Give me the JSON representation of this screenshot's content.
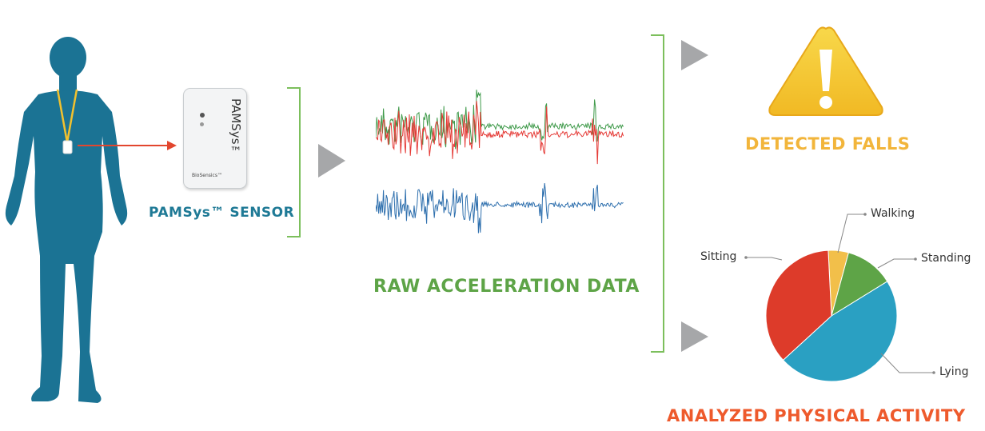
{
  "labels": {
    "sensor": "PAMSys™ SENSOR",
    "raw_data": "RAW ACCELERATION DATA",
    "falls": "DETECTED FALLS",
    "activity": "ANALYZED PHYSICAL ACTIVITY"
  },
  "sensor_device": {
    "brand": "PAMSys™",
    "maker": "BioSensics™"
  },
  "chart_data": {
    "type": "pie",
    "title": "",
    "series": [
      {
        "name": "Walking",
        "value": 5,
        "color": "#f2bf4a"
      },
      {
        "name": "Standing",
        "value": 12,
        "color": "#5ea447"
      },
      {
        "name": "Lying",
        "value": 47,
        "color": "#2aa0c2"
      },
      {
        "name": "Sitting",
        "value": 36,
        "color": "#dd3b2a"
      }
    ]
  },
  "colors": {
    "figure": "#1b7394",
    "arrow_grey": "#a6a7a9",
    "bracket_green": "#7cbf5c",
    "signal_red": "#e53a36",
    "signal_green": "#3f9a4a",
    "signal_blue": "#2f70ae",
    "warning_yellow": "#f6cb3f"
  },
  "icons": [
    "human-figure-icon",
    "warning-triangle-icon",
    "play-arrow-icon"
  ]
}
